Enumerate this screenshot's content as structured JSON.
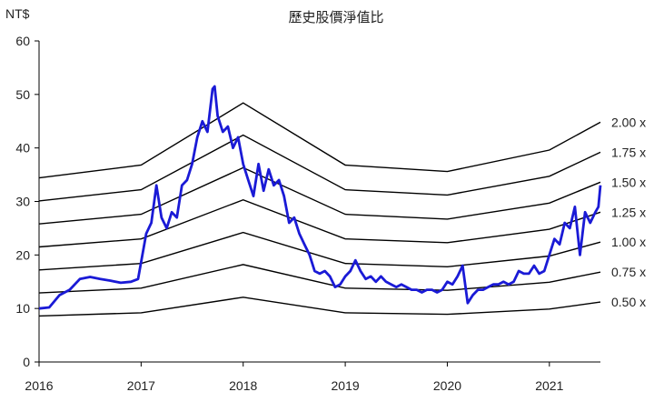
{
  "chart_data": {
    "type": "line",
    "title": "歷史股價淨值比",
    "ylabel": "NT$",
    "xlabel": "",
    "xlim": [
      2016,
      2021.5
    ],
    "ylim": [
      0,
      60
    ],
    "grid": false,
    "x_ticks": [
      {
        "value": 2016,
        "label": "2016"
      },
      {
        "value": 2017,
        "label": "2017"
      },
      {
        "value": 2018,
        "label": "2018"
      },
      {
        "value": 2019,
        "label": "2019"
      },
      {
        "value": 2020,
        "label": "2020"
      },
      {
        "value": 2021,
        "label": "2021"
      }
    ],
    "y_ticks": [
      {
        "value": 0,
        "label": "0"
      },
      {
        "value": 10,
        "label": "10"
      },
      {
        "value": 20,
        "label": "20"
      },
      {
        "value": 30,
        "label": "30"
      },
      {
        "value": 40,
        "label": "40"
      },
      {
        "value": 50,
        "label": "50"
      },
      {
        "value": 60,
        "label": "60"
      }
    ],
    "bands": [
      {
        "label": "0.50 x",
        "x": [
          2016,
          2017,
          2018,
          2019,
          2020,
          2021,
          2021.5
        ],
        "y": [
          8.6,
          9.2,
          12.1,
          9.2,
          8.9,
          9.9,
          11.2
        ]
      },
      {
        "label": "0.75 x",
        "x": [
          2016,
          2017,
          2018,
          2019,
          2020,
          2021,
          2021.5
        ],
        "y": [
          12.9,
          13.8,
          18.2,
          13.8,
          13.4,
          14.9,
          16.8
        ]
      },
      {
        "label": "1.00 x",
        "x": [
          2016,
          2017,
          2018,
          2019,
          2020,
          2021,
          2021.5
        ],
        "y": [
          17.2,
          18.4,
          24.2,
          18.4,
          17.8,
          19.8,
          22.4
        ]
      },
      {
        "label": "1.25 x",
        "x": [
          2016,
          2017,
          2018,
          2019,
          2020,
          2021,
          2021.5
        ],
        "y": [
          21.5,
          23.0,
          30.3,
          23.0,
          22.3,
          24.8,
          28.0
        ]
      },
      {
        "label": "1.50 x",
        "x": [
          2016,
          2017,
          2018,
          2019,
          2020,
          2021,
          2021.5
        ],
        "y": [
          25.8,
          27.6,
          36.3,
          27.6,
          26.7,
          29.7,
          33.6
        ]
      },
      {
        "label": "1.75 x",
        "x": [
          2016,
          2017,
          2018,
          2019,
          2020,
          2021,
          2021.5
        ],
        "y": [
          30.1,
          32.2,
          42.4,
          32.2,
          31.2,
          34.7,
          39.2
        ]
      },
      {
        "label": "2.00 x",
        "x": [
          2016,
          2017,
          2018,
          2019,
          2020,
          2021,
          2021.5
        ],
        "y": [
          34.4,
          36.8,
          48.4,
          36.8,
          35.6,
          39.6,
          44.8
        ]
      }
    ],
    "series": [
      {
        "values_x": [
          2016.0,
          2016.1,
          2016.2,
          2016.3,
          2016.4,
          2016.5,
          2016.6,
          2016.7,
          2016.8,
          2016.9,
          2016.97,
          2017.05,
          2017.1,
          2017.15,
          2017.2,
          2017.25,
          2017.3,
          2017.35,
          2017.4,
          2017.45,
          2017.5,
          2017.55,
          2017.6,
          2017.65,
          2017.7,
          2017.72,
          2017.75,
          2017.8,
          2017.85,
          2017.9,
          2017.95,
          2018.0,
          2018.05,
          2018.1,
          2018.15,
          2018.2,
          2018.25,
          2018.3,
          2018.35,
          2018.4,
          2018.45,
          2018.5,
          2018.55,
          2018.6,
          2018.65,
          2018.7,
          2018.75,
          2018.8,
          2018.85,
          2018.9,
          2018.95,
          2019.0,
          2019.05,
          2019.1,
          2019.15,
          2019.2,
          2019.25,
          2019.3,
          2019.35,
          2019.4,
          2019.45,
          2019.5,
          2019.55,
          2019.6,
          2019.65,
          2019.7,
          2019.75,
          2019.8,
          2019.85,
          2019.9,
          2019.95,
          2020.0,
          2020.05,
          2020.1,
          2020.15,
          2020.2,
          2020.25,
          2020.3,
          2020.35,
          2020.4,
          2020.45,
          2020.5,
          2020.55,
          2020.6,
          2020.65,
          2020.7,
          2020.75,
          2020.8,
          2020.85,
          2020.9,
          2020.95,
          2021.0,
          2021.05,
          2021.1,
          2021.15,
          2021.2,
          2021.25,
          2021.3,
          2021.35,
          2021.4,
          2021.45,
          2021.48,
          2021.5
        ],
        "values": [
          10.0,
          10.2,
          12.5,
          13.5,
          15.5,
          15.9,
          15.5,
          15.2,
          14.8,
          15.0,
          15.5,
          24.0,
          26.0,
          33.0,
          27.0,
          25.0,
          28.0,
          27.0,
          33.0,
          34.0,
          37.0,
          42.0,
          45.0,
          43.0,
          51.0,
          51.5,
          46.0,
          43.0,
          44.0,
          40.0,
          42.0,
          37.0,
          34.0,
          31.0,
          37.0,
          32.0,
          36.0,
          33.0,
          34.0,
          31.0,
          26.0,
          27.0,
          24.0,
          22.0,
          20.0,
          17.0,
          16.5,
          17.0,
          16.0,
          14.0,
          14.5,
          16.0,
          17.0,
          19.0,
          17.0,
          15.5,
          16.0,
          15.0,
          16.0,
          15.0,
          14.5,
          14.0,
          14.5,
          14.0,
          13.5,
          13.5,
          13.0,
          13.5,
          13.5,
          13.0,
          13.5,
          15.0,
          14.5,
          16.0,
          18.0,
          11.0,
          12.5,
          13.5,
          13.5,
          14.0,
          14.5,
          14.5,
          15.0,
          14.5,
          15.0,
          17.0,
          16.5,
          16.5,
          18.0,
          16.5,
          17.0,
          20.0,
          23.0,
          22.0,
          26.0,
          25.0,
          29.0,
          20.0,
          28.0,
          26.0,
          28.0,
          29.0,
          33.0
        ]
      }
    ]
  }
}
